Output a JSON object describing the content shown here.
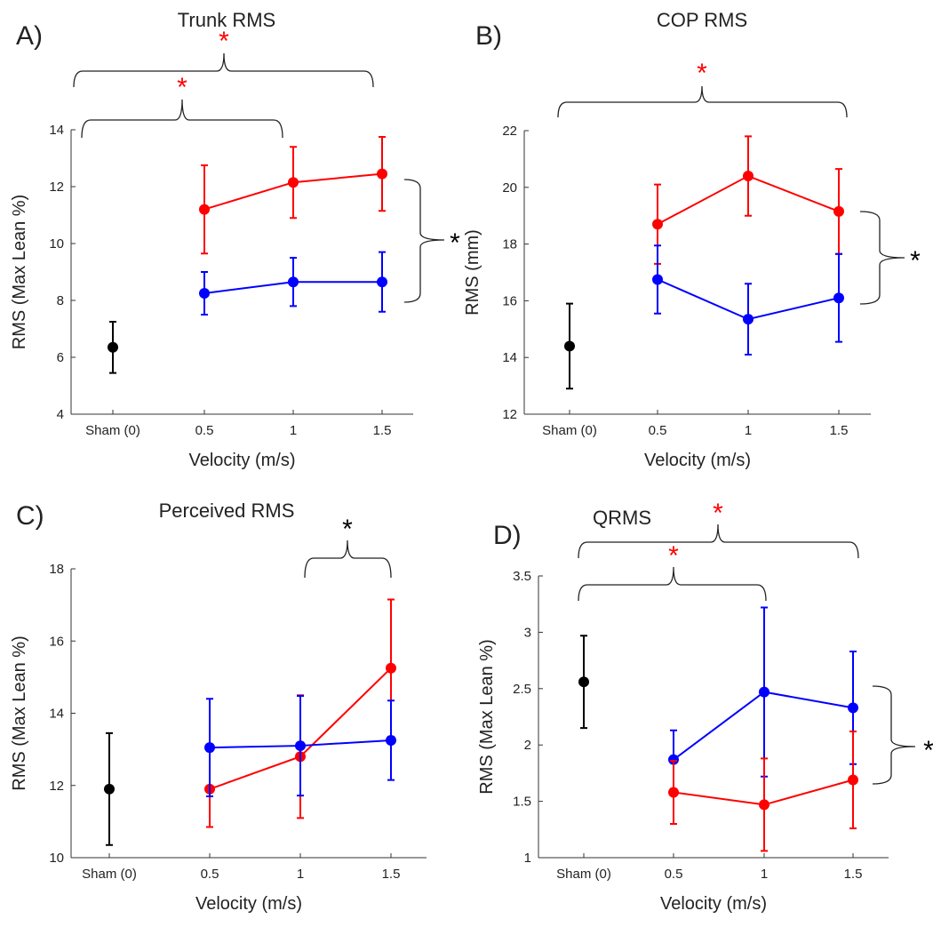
{
  "chart_data": [
    {
      "type": "line",
      "label": "A)",
      "title": "Trunk RMS",
      "xlabel": "Velocity (m/s)",
      "ylabel": "RMS (Max Lean %)",
      "categories": [
        "Sham (0)",
        "0.5",
        "1",
        "1.5"
      ],
      "series": [
        {
          "color": "#000000",
          "values": [
            6.35,
            null,
            null,
            null
          ],
          "errors": [
            0.9,
            null,
            null,
            null
          ]
        },
        {
          "color": "#ff0000",
          "values": [
            null,
            11.2,
            12.15,
            12.45
          ],
          "errors": [
            null,
            1.55,
            1.25,
            1.3
          ]
        },
        {
          "color": "#0000ff",
          "values": [
            null,
            8.25,
            8.65,
            8.65
          ],
          "errors": [
            null,
            0.75,
            0.85,
            1.05
          ]
        }
      ],
      "ylim": [
        4,
        14
      ],
      "yticks": [
        4,
        6,
        8,
        10,
        12,
        14
      ],
      "annotations": [
        {
          "text": "*",
          "color": "#ff0000"
        },
        {
          "text": "*",
          "color": "#ff0000"
        },
        {
          "text": "*",
          "color": "#000000"
        }
      ]
    },
    {
      "type": "line",
      "label": "B)",
      "title": "COP RMS",
      "xlabel": "Velocity (m/s)",
      "ylabel": "RMS (mm)",
      "categories": [
        "Sham (0)",
        "0.5",
        "1",
        "1.5"
      ],
      "series": [
        {
          "color": "#000000",
          "values": [
            14.4,
            null,
            null,
            null
          ],
          "errors": [
            1.5,
            null,
            null,
            null
          ]
        },
        {
          "color": "#ff0000",
          "values": [
            null,
            18.7,
            20.4,
            19.15
          ],
          "errors": [
            null,
            1.4,
            1.4,
            1.5
          ]
        },
        {
          "color": "#0000ff",
          "values": [
            null,
            16.75,
            15.35,
            16.1
          ],
          "errors": [
            null,
            1.2,
            1.25,
            1.55
          ]
        }
      ],
      "ylim": [
        12,
        22
      ],
      "yticks": [
        12,
        14,
        16,
        18,
        20,
        22
      ],
      "annotations": [
        {
          "text": "*",
          "color": "#ff0000"
        },
        {
          "text": "*",
          "color": "#000000"
        }
      ]
    },
    {
      "type": "line",
      "label": "C)",
      "title": "Perceived RMS",
      "xlabel": "Velocity (m/s)",
      "ylabel": "RMS (Max Lean %)",
      "categories": [
        "Sham (0)",
        "0.5",
        "1",
        "1.5"
      ],
      "series": [
        {
          "color": "#000000",
          "values": [
            11.9,
            null,
            null,
            null
          ],
          "errors": [
            1.55,
            null,
            null,
            null
          ]
        },
        {
          "color": "#ff0000",
          "values": [
            null,
            11.9,
            12.8,
            15.25
          ],
          "errors": [
            null,
            1.05,
            1.7,
            1.9
          ]
        },
        {
          "color": "#0000ff",
          "values": [
            null,
            13.05,
            13.1,
            13.25
          ],
          "errors": [
            null,
            1.35,
            1.38,
            1.1
          ]
        }
      ],
      "ylim": [
        10,
        18
      ],
      "yticks": [
        10,
        12,
        14,
        16,
        18
      ],
      "annotations": [
        {
          "text": "*",
          "color": "#000000"
        }
      ]
    },
    {
      "type": "line",
      "label": "D)",
      "title": "QRMS",
      "xlabel": "Velocity (m/s)",
      "ylabel": "RMS (Max Lean %)",
      "categories": [
        "Sham (0)",
        "0.5",
        "1",
        "1.5"
      ],
      "series": [
        {
          "color": "#000000",
          "values": [
            2.56,
            null,
            null,
            null
          ],
          "errors": [
            0.41,
            null,
            null,
            null
          ]
        },
        {
          "color": "#0000ff",
          "values": [
            null,
            1.87,
            2.47,
            2.33
          ],
          "errors": [
            null,
            0.26,
            0.75,
            0.5
          ]
        },
        {
          "color": "#ff0000",
          "values": [
            null,
            1.58,
            1.47,
            1.69
          ],
          "errors": [
            null,
            0.28,
            0.41,
            0.43
          ]
        }
      ],
      "ylim": [
        1,
        3.5
      ],
      "yticks": [
        1,
        1.5,
        2,
        2.5,
        3,
        3.5
      ],
      "annotations": [
        {
          "text": "*",
          "color": "#ff0000"
        },
        {
          "text": "*",
          "color": "#ff0000"
        },
        {
          "text": "*",
          "color": "#000000"
        }
      ]
    }
  ]
}
